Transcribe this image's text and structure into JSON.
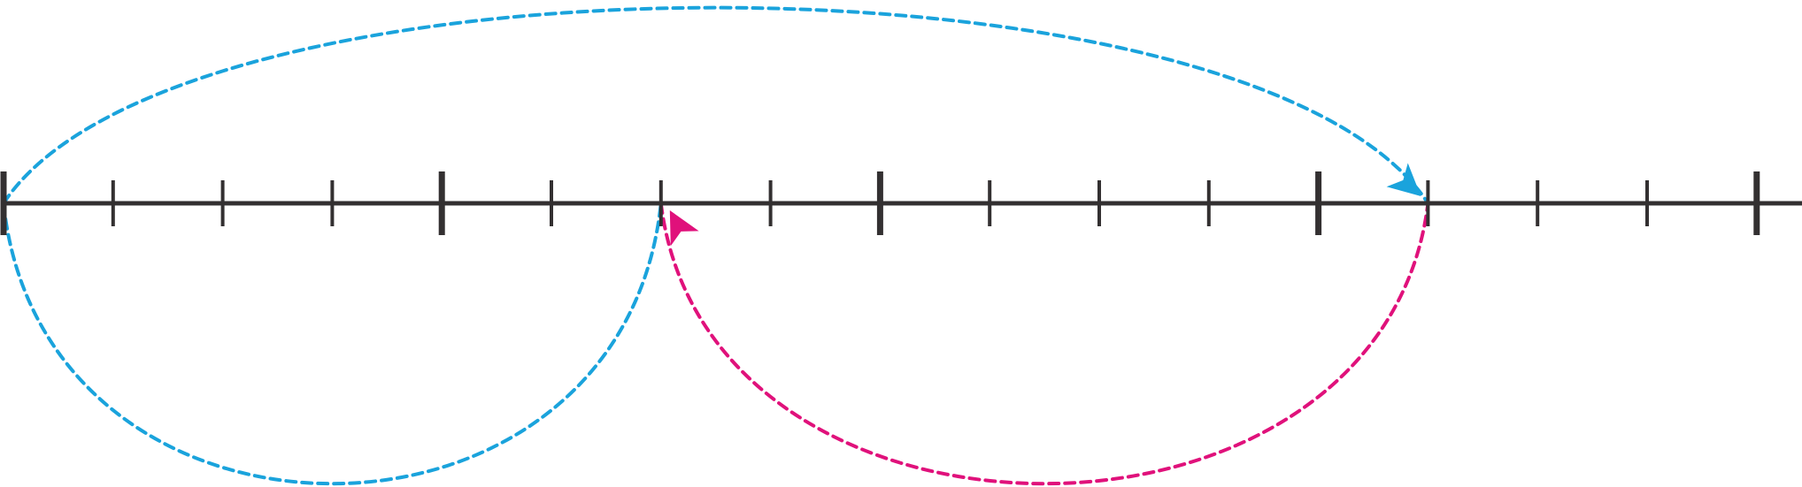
{
  "number_line": {
    "major_tick_count": 5,
    "minor_ticks_between_majors": 3,
    "extends_right": true
  },
  "colors": {
    "axis": "#333031",
    "jump_blue": "#1aa3dc",
    "jump_magenta": "#e0117b",
    "background": "#ffffff"
  },
  "jumps": [
    {
      "color_key": "jump_blue",
      "side": "below",
      "from_tick": 0,
      "to_tick": 6,
      "arrow": false
    },
    {
      "color_key": "jump_blue",
      "side": "above",
      "from_tick": 0,
      "to_tick": 13,
      "arrow": true
    },
    {
      "color_key": "jump_magenta",
      "side": "below",
      "from_tick": 13,
      "to_tick": 6,
      "arrow": true
    }
  ]
}
